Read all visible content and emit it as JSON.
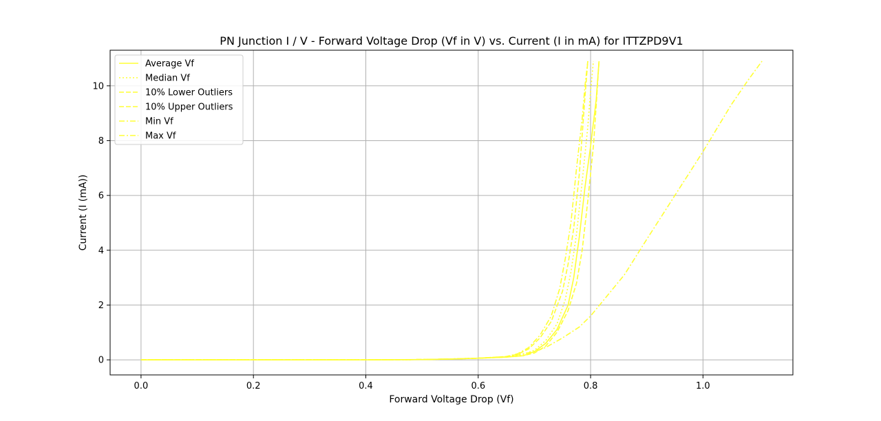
{
  "chart_data": {
    "type": "line",
    "title": "PN Junction I / V - Forward Voltage Drop (Vf in V) vs. Current (I in mA) for ITTZPD9V1",
    "xlabel": "Forward Voltage Drop (Vf)",
    "ylabel": "Current (I (mA))",
    "xlim": [
      -0.055,
      1.16
    ],
    "ylim": [
      -0.55,
      11.3
    ],
    "xticks": [
      0.0,
      0.2,
      0.4,
      0.6,
      0.8,
      1.0
    ],
    "xtick_labels": [
      "0.0",
      "0.2",
      "0.4",
      "0.6",
      "0.8",
      "1.0"
    ],
    "yticks": [
      0,
      2,
      4,
      6,
      8,
      10
    ],
    "ytick_labels": [
      "0",
      "2",
      "4",
      "6",
      "8",
      "10"
    ],
    "grid": true,
    "legend_position": "top-left",
    "color": "#ffff33",
    "series": [
      {
        "name": "Average Vf",
        "dash": "solid",
        "x": [
          0.0,
          0.1,
          0.2,
          0.3,
          0.4,
          0.5,
          0.55,
          0.6,
          0.65,
          0.68,
          0.7,
          0.72,
          0.74,
          0.76,
          0.77,
          0.78,
          0.79,
          0.8,
          0.81,
          0.815
        ],
        "y": [
          0.0,
          0.0,
          0.0,
          0.0,
          0.0,
          0.01,
          0.03,
          0.06,
          0.1,
          0.15,
          0.3,
          0.6,
          1.1,
          2.0,
          3.0,
          4.5,
          6.3,
          7.8,
          9.5,
          10.9
        ]
      },
      {
        "name": "Median Vf",
        "dash": "dotted",
        "x": [
          0.0,
          0.1,
          0.2,
          0.3,
          0.4,
          0.5,
          0.55,
          0.6,
          0.65,
          0.68,
          0.7,
          0.72,
          0.74,
          0.755,
          0.765,
          0.775,
          0.785,
          0.795,
          0.8,
          0.805
        ],
        "y": [
          0.0,
          0.0,
          0.0,
          0.0,
          0.0,
          0.01,
          0.03,
          0.06,
          0.1,
          0.2,
          0.35,
          0.7,
          1.3,
          2.2,
          3.2,
          4.6,
          6.5,
          8.5,
          9.8,
          10.9
        ]
      },
      {
        "name": "10% Lower Outliers",
        "dash": "dashed",
        "x": [
          0.0,
          0.1,
          0.2,
          0.3,
          0.4,
          0.5,
          0.55,
          0.6,
          0.65,
          0.67,
          0.69,
          0.71,
          0.73,
          0.75,
          0.76,
          0.77,
          0.78,
          0.785,
          0.79,
          0.795
        ],
        "y": [
          0.0,
          0.0,
          0.0,
          0.0,
          0.0,
          0.01,
          0.03,
          0.06,
          0.12,
          0.2,
          0.4,
          0.8,
          1.4,
          2.5,
          3.5,
          4.8,
          6.8,
          8.2,
          9.6,
          10.9
        ]
      },
      {
        "name": "10% Upper Outliers",
        "dash": "dashed",
        "x": [
          0.0,
          0.1,
          0.2,
          0.3,
          0.4,
          0.5,
          0.55,
          0.6,
          0.65,
          0.68,
          0.7,
          0.72,
          0.74,
          0.76,
          0.775,
          0.785,
          0.795,
          0.805,
          0.81,
          0.815
        ],
        "y": [
          0.0,
          0.0,
          0.0,
          0.0,
          0.0,
          0.01,
          0.03,
          0.06,
          0.1,
          0.15,
          0.25,
          0.5,
          1.0,
          1.8,
          2.8,
          4.0,
          5.8,
          7.8,
          9.3,
          10.9
        ]
      },
      {
        "name": "Min Vf",
        "dash": "dashdot",
        "x": [
          0.0,
          0.1,
          0.2,
          0.3,
          0.4,
          0.5,
          0.55,
          0.6,
          0.65,
          0.67,
          0.69,
          0.71,
          0.73,
          0.745,
          0.755,
          0.765,
          0.775,
          0.785,
          0.79,
          0.795
        ],
        "y": [
          0.0,
          0.0,
          0.0,
          0.0,
          0.0,
          0.01,
          0.03,
          0.06,
          0.12,
          0.22,
          0.45,
          0.9,
          1.6,
          2.6,
          3.7,
          5.0,
          7.0,
          8.8,
          10.0,
          10.9
        ]
      },
      {
        "name": "Max Vf",
        "dash": "dashdot",
        "x": [
          0.0,
          0.1,
          0.2,
          0.3,
          0.4,
          0.5,
          0.55,
          0.6,
          0.65,
          0.7,
          0.72,
          0.75,
          0.78,
          0.8,
          0.82,
          0.86,
          0.9,
          0.95,
          1.0,
          1.05,
          1.08,
          1.105
        ],
        "y": [
          0.0,
          0.0,
          0.0,
          0.0,
          0.0,
          0.01,
          0.03,
          0.06,
          0.1,
          0.3,
          0.45,
          0.8,
          1.2,
          1.6,
          2.1,
          3.1,
          4.4,
          6.0,
          7.6,
          9.3,
          10.2,
          10.9
        ]
      }
    ]
  }
}
